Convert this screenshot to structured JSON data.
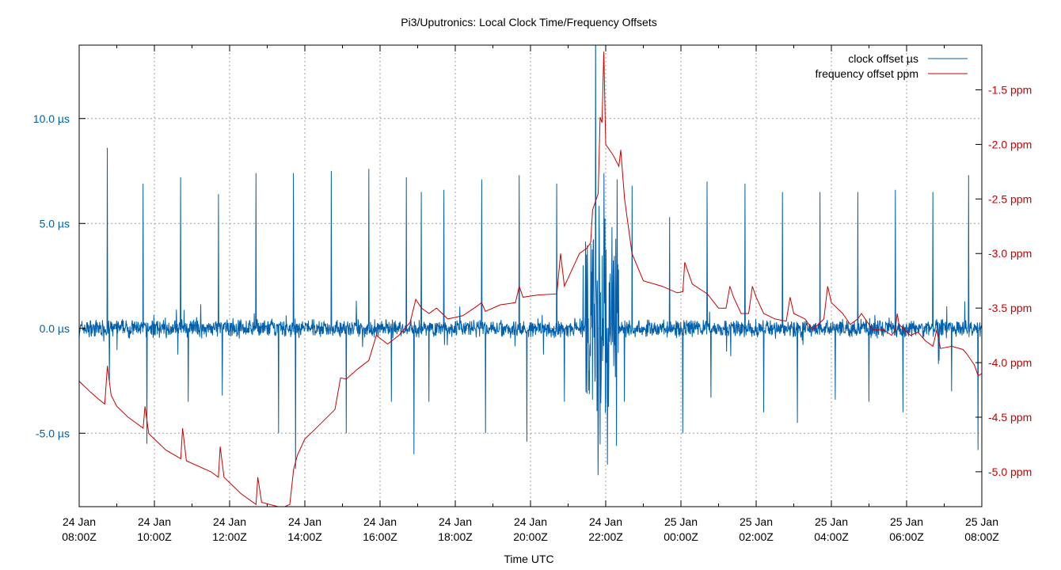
{
  "chart_data": {
    "type": "line",
    "title": "Pi3/Uputronics: Local Clock Time/Frequency Offsets",
    "xlabel": "Time UTC",
    "ylabel": "",
    "y2label": "",
    "colors": {
      "clock": "#0060ad",
      "freq": "#cc0000",
      "grid": "#a0a0a0"
    },
    "grid": true,
    "legend_position": "top-right",
    "x_ticks": [
      {
        "line1": "24 Jan",
        "line2": "08:00Z",
        "h": 0
      },
      {
        "line1": "24 Jan",
        "line2": "10:00Z",
        "h": 2
      },
      {
        "line1": "24 Jan",
        "line2": "12:00Z",
        "h": 4
      },
      {
        "line1": "24 Jan",
        "line2": "14:00Z",
        "h": 6
      },
      {
        "line1": "24 Jan",
        "line2": "16:00Z",
        "h": 8
      },
      {
        "line1": "24 Jan",
        "line2": "18:00Z",
        "h": 10
      },
      {
        "line1": "24 Jan",
        "line2": "20:00Z",
        "h": 12
      },
      {
        "line1": "24 Jan",
        "line2": "22:00Z",
        "h": 14
      },
      {
        "line1": "25 Jan",
        "line2": "00:00Z",
        "h": 16
      },
      {
        "line1": "25 Jan",
        "line2": "02:00Z",
        "h": 18
      },
      {
        "line1": "25 Jan",
        "line2": "04:00Z",
        "h": 20
      },
      {
        "line1": "25 Jan",
        "line2": "06:00Z",
        "h": 22
      },
      {
        "line1": "25 Jan",
        "line2": "08:00Z",
        "h": 24
      }
    ],
    "xlim_hours": [
      0,
      24
    ],
    "y_left": {
      "range": [
        -8.5,
        13.5
      ],
      "ticks": [
        {
          "v": 10,
          "label": "10.0 µs"
        },
        {
          "v": 5,
          "label": "5.0 µs"
        },
        {
          "v": 0,
          "label": "0.0 µs"
        },
        {
          "v": -5,
          "label": "-5.0 µs"
        }
      ]
    },
    "y_right": {
      "range": [
        -5.32,
        -1.09
      ],
      "ticks": [
        {
          "v": -1.5,
          "label": "-1.5 ppm"
        },
        {
          "v": -2.0,
          "label": "-2.0 ppm"
        },
        {
          "v": -2.5,
          "label": "-2.5 ppm"
        },
        {
          "v": -3.0,
          "label": "-3.0 ppm"
        },
        {
          "v": -3.5,
          "label": "-3.5 ppm"
        },
        {
          "v": -4.0,
          "label": "-4.0 ppm"
        },
        {
          "v": -4.5,
          "label": "-4.5 ppm"
        },
        {
          "v": -5.0,
          "label": "-5.0 ppm"
        }
      ]
    },
    "series": [
      {
        "name": "clock offset µs",
        "axis": "left",
        "baseline_noise": 0.5,
        "spikes": [
          [
            0.75,
            8.6
          ],
          [
            0.8,
            -2.5
          ],
          [
            1.7,
            6.9
          ],
          [
            1.8,
            -5.5
          ],
          [
            2.7,
            7.2
          ],
          [
            2.9,
            -3.5
          ],
          [
            3.7,
            6.4
          ],
          [
            3.8,
            -3.2
          ],
          [
            4.7,
            7.4
          ],
          [
            5.3,
            -5.0
          ],
          [
            5.7,
            7.4
          ],
          [
            5.75,
            -6.7
          ],
          [
            6.7,
            7.5
          ],
          [
            7.1,
            -5.0
          ],
          [
            7.7,
            7.6
          ],
          [
            8.3,
            -3.5
          ],
          [
            8.7,
            7.2
          ],
          [
            8.9,
            -6.0
          ],
          [
            9.1,
            6.5
          ],
          [
            9.3,
            -3.5
          ],
          [
            9.7,
            6.6
          ],
          [
            10.7,
            7.1
          ],
          [
            10.8,
            -5.0
          ],
          [
            11.7,
            7.3
          ],
          [
            11.9,
            -5.4
          ],
          [
            12.7,
            6.9
          ],
          [
            12.9,
            -3.5
          ],
          [
            13.4,
            3.0
          ],
          [
            13.8,
            -7.0
          ],
          [
            13.95,
            7.4
          ],
          [
            14.05,
            -6.5
          ],
          [
            14.3,
            7.1
          ],
          [
            14.5,
            -3.5
          ],
          [
            14.7,
            6.8
          ],
          [
            15.7,
            5.3
          ],
          [
            16.05,
            -5.0
          ],
          [
            16.7,
            7.0
          ],
          [
            16.8,
            -3.3
          ],
          [
            17.7,
            6.9
          ],
          [
            18.2,
            -4.0
          ],
          [
            18.7,
            6.5
          ],
          [
            19.1,
            -4.5
          ],
          [
            19.7,
            6.5
          ],
          [
            20.1,
            -3.4
          ],
          [
            20.7,
            6.5
          ],
          [
            21.0,
            -3.5
          ],
          [
            21.7,
            6.6
          ],
          [
            21.9,
            -4.0
          ],
          [
            22.7,
            6.5
          ],
          [
            22.85,
            -1.7
          ],
          [
            23.2,
            -3.0
          ],
          [
            23.65,
            7.3
          ],
          [
            23.9,
            -5.8
          ]
        ],
        "burst": {
          "from": 13.45,
          "to": 14.35,
          "amplitude": 6.0
        }
      },
      {
        "name": "frequency offset ppm",
        "axis": "right",
        "points": [
          [
            0.0,
            -4.17
          ],
          [
            0.3,
            -4.27
          ],
          [
            0.5,
            -4.33
          ],
          [
            0.68,
            -4.38
          ],
          [
            0.75,
            -4.03
          ],
          [
            0.85,
            -4.3
          ],
          [
            1.0,
            -4.4
          ],
          [
            1.3,
            -4.5
          ],
          [
            1.7,
            -4.6
          ],
          [
            1.75,
            -4.4
          ],
          [
            1.85,
            -4.65
          ],
          [
            2.3,
            -4.8
          ],
          [
            2.7,
            -4.88
          ],
          [
            2.75,
            -4.6
          ],
          [
            2.85,
            -4.9
          ],
          [
            3.5,
            -5.0
          ],
          [
            3.7,
            -5.05
          ],
          [
            3.75,
            -4.77
          ],
          [
            3.85,
            -5.05
          ],
          [
            4.3,
            -5.2
          ],
          [
            4.7,
            -5.3
          ],
          [
            4.75,
            -5.05
          ],
          [
            4.85,
            -5.28
          ],
          [
            5.4,
            -5.33
          ],
          [
            5.6,
            -5.3
          ],
          [
            5.7,
            -4.98
          ],
          [
            5.8,
            -4.85
          ],
          [
            6.0,
            -4.7
          ],
          [
            6.3,
            -4.6
          ],
          [
            6.8,
            -4.43
          ],
          [
            6.95,
            -4.14
          ],
          [
            7.1,
            -4.15
          ],
          [
            7.4,
            -4.06
          ],
          [
            7.7,
            -3.98
          ],
          [
            7.9,
            -3.75
          ],
          [
            8.2,
            -3.83
          ],
          [
            8.5,
            -3.75
          ],
          [
            8.8,
            -3.63
          ],
          [
            8.95,
            -3.42
          ],
          [
            9.1,
            -3.5
          ],
          [
            9.3,
            -3.55
          ],
          [
            9.5,
            -3.5
          ],
          [
            9.8,
            -3.6
          ],
          [
            10.2,
            -3.57
          ],
          [
            10.5,
            -3.5
          ],
          [
            10.7,
            -3.45
          ],
          [
            10.8,
            -3.53
          ],
          [
            11.2,
            -3.47
          ],
          [
            11.6,
            -3.45
          ],
          [
            11.7,
            -3.3
          ],
          [
            11.8,
            -3.4
          ],
          [
            12.2,
            -3.38
          ],
          [
            12.7,
            -3.37
          ],
          [
            12.8,
            -3.0
          ],
          [
            12.9,
            -3.3
          ],
          [
            13.3,
            -3.0
          ],
          [
            13.5,
            -2.95
          ],
          [
            13.6,
            -2.9
          ],
          [
            13.65,
            -2.6
          ],
          [
            13.8,
            -2.45
          ],
          [
            13.85,
            -1.75
          ],
          [
            13.9,
            -1.8
          ],
          [
            13.95,
            -1.15
          ],
          [
            14.0,
            -2.0
          ],
          [
            14.2,
            -2.1
          ],
          [
            14.35,
            -2.2
          ],
          [
            14.4,
            -2.05
          ],
          [
            14.5,
            -2.5
          ],
          [
            14.7,
            -3.0
          ],
          [
            15.0,
            -3.25
          ],
          [
            15.5,
            -3.3
          ],
          [
            15.9,
            -3.36
          ],
          [
            16.05,
            -3.35
          ],
          [
            16.1,
            -3.08
          ],
          [
            16.3,
            -3.28
          ],
          [
            16.7,
            -3.37
          ],
          [
            17.0,
            -3.5
          ],
          [
            17.2,
            -3.5
          ],
          [
            17.3,
            -3.3
          ],
          [
            17.4,
            -3.4
          ],
          [
            17.6,
            -3.55
          ],
          [
            17.8,
            -3.55
          ],
          [
            17.9,
            -3.3
          ],
          [
            18.0,
            -3.4
          ],
          [
            18.2,
            -3.55
          ],
          [
            18.5,
            -3.6
          ],
          [
            18.8,
            -3.62
          ],
          [
            18.9,
            -3.4
          ],
          [
            19.0,
            -3.55
          ],
          [
            19.3,
            -3.6
          ],
          [
            19.5,
            -3.7
          ],
          [
            19.8,
            -3.6
          ],
          [
            19.9,
            -3.3
          ],
          [
            20.0,
            -3.45
          ],
          [
            20.3,
            -3.55
          ],
          [
            20.4,
            -3.6
          ],
          [
            20.5,
            -3.65
          ],
          [
            20.7,
            -3.6
          ],
          [
            20.8,
            -3.55
          ],
          [
            21.1,
            -3.7
          ],
          [
            21.4,
            -3.7
          ],
          [
            21.6,
            -3.75
          ],
          [
            21.7,
            -3.7
          ],
          [
            21.75,
            -3.55
          ],
          [
            21.8,
            -3.65
          ],
          [
            22.1,
            -3.75
          ],
          [
            22.3,
            -3.72
          ],
          [
            22.5,
            -3.8
          ],
          [
            22.7,
            -3.85
          ],
          [
            22.8,
            -3.7
          ],
          [
            22.9,
            -3.87
          ],
          [
            23.2,
            -3.85
          ],
          [
            23.5,
            -3.88
          ],
          [
            23.6,
            -3.92
          ],
          [
            23.8,
            -4.02
          ],
          [
            23.9,
            -4.12
          ],
          [
            24.0,
            -4.1
          ]
        ]
      }
    ]
  }
}
